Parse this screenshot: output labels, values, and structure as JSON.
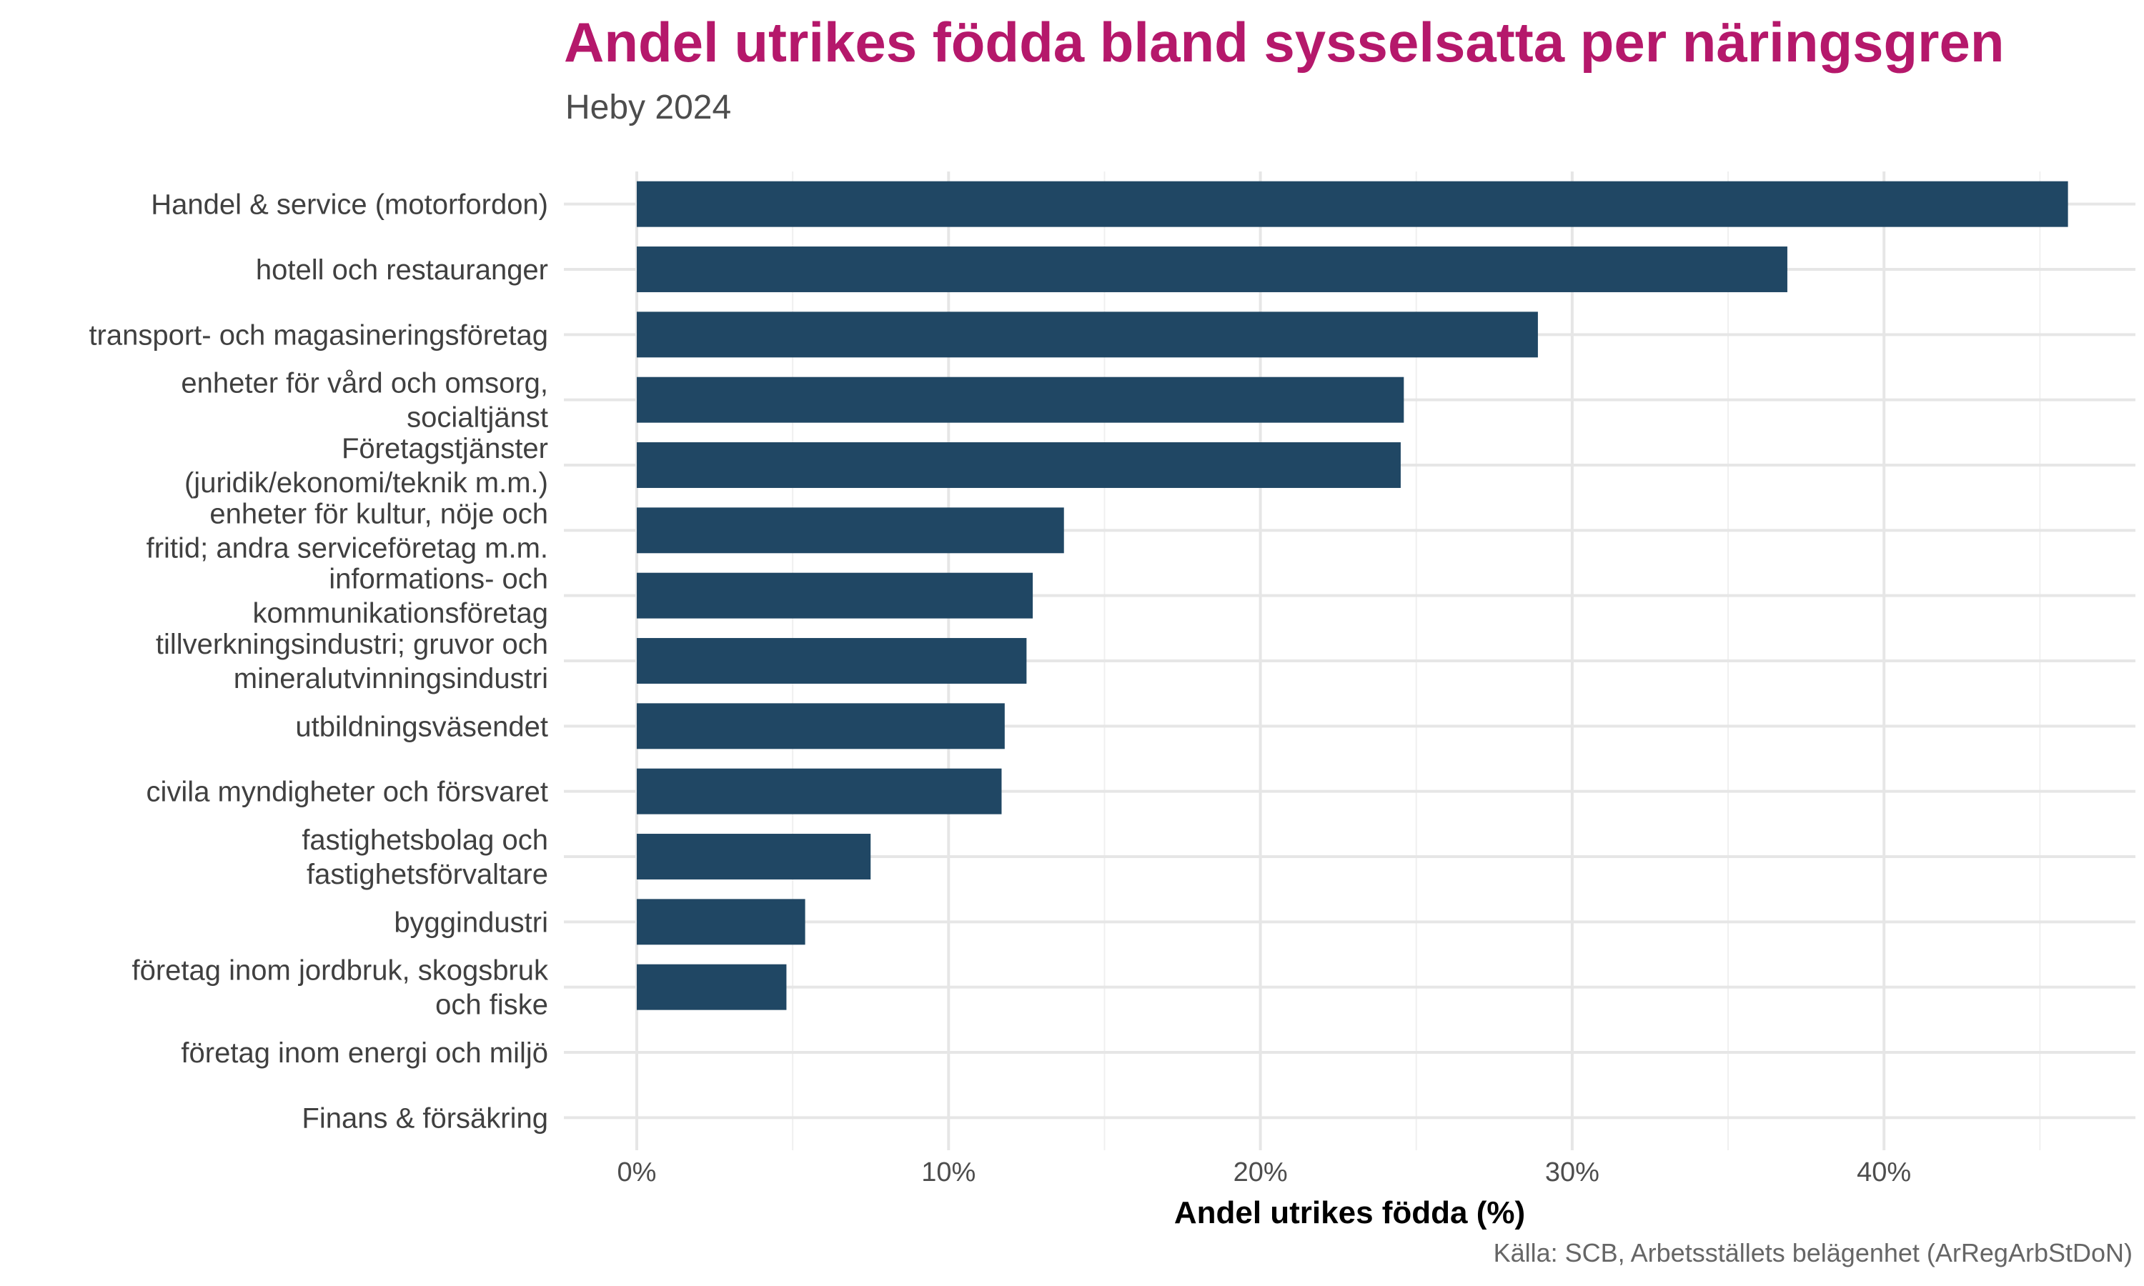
{
  "chart_data": {
    "type": "bar",
    "orientation": "horizontal",
    "title": "Andel utrikes födda bland sysselsatta per näringsgren",
    "subtitle": "Heby 2024",
    "xlabel": "Andel utrikes födda (%)",
    "ylabel": "",
    "caption": "Källa: SCB, Arbetsställets belägenhet (ArRegArbStDoN)",
    "xlim": [
      0,
      46
    ],
    "x_ticks": [
      0,
      10,
      20,
      30,
      40
    ],
    "x_tick_labels": [
      "0%",
      "10%",
      "20%",
      "30%",
      "40%"
    ],
    "grid": true,
    "bar_color": "#204764",
    "categories": [
      [
        "Handel & service (motorfordon)"
      ],
      [
        "hotell och restauranger"
      ],
      [
        "transport- och magasineringsföretag"
      ],
      [
        "enheter för vård och omsorg,",
        "socialtjänst"
      ],
      [
        "Företagstjänster",
        "(juridik/ekonomi/teknik m.m.)"
      ],
      [
        "enheter för kultur, nöje och",
        "fritid; andra serviceföretag m.m."
      ],
      [
        "informations- och",
        "kommunikationsföretag"
      ],
      [
        "tillverkningsindustri; gruvor och",
        "mineralutvinningsindustri"
      ],
      [
        "utbildningsväsendet"
      ],
      [
        "civila myndigheter och försvaret"
      ],
      [
        "fastighetsbolag och",
        "fastighetsförvaltare"
      ],
      [
        "byggindustri"
      ],
      [
        "företag inom jordbruk, skogsbruk",
        "och fiske"
      ],
      [
        "företag inom energi och miljö"
      ],
      [
        "Finans & försäkring"
      ]
    ],
    "values": [
      45.9,
      36.9,
      28.9,
      24.6,
      24.5,
      13.7,
      12.7,
      12.5,
      11.8,
      11.7,
      7.5,
      5.4,
      4.8,
      0,
      0
    ]
  }
}
